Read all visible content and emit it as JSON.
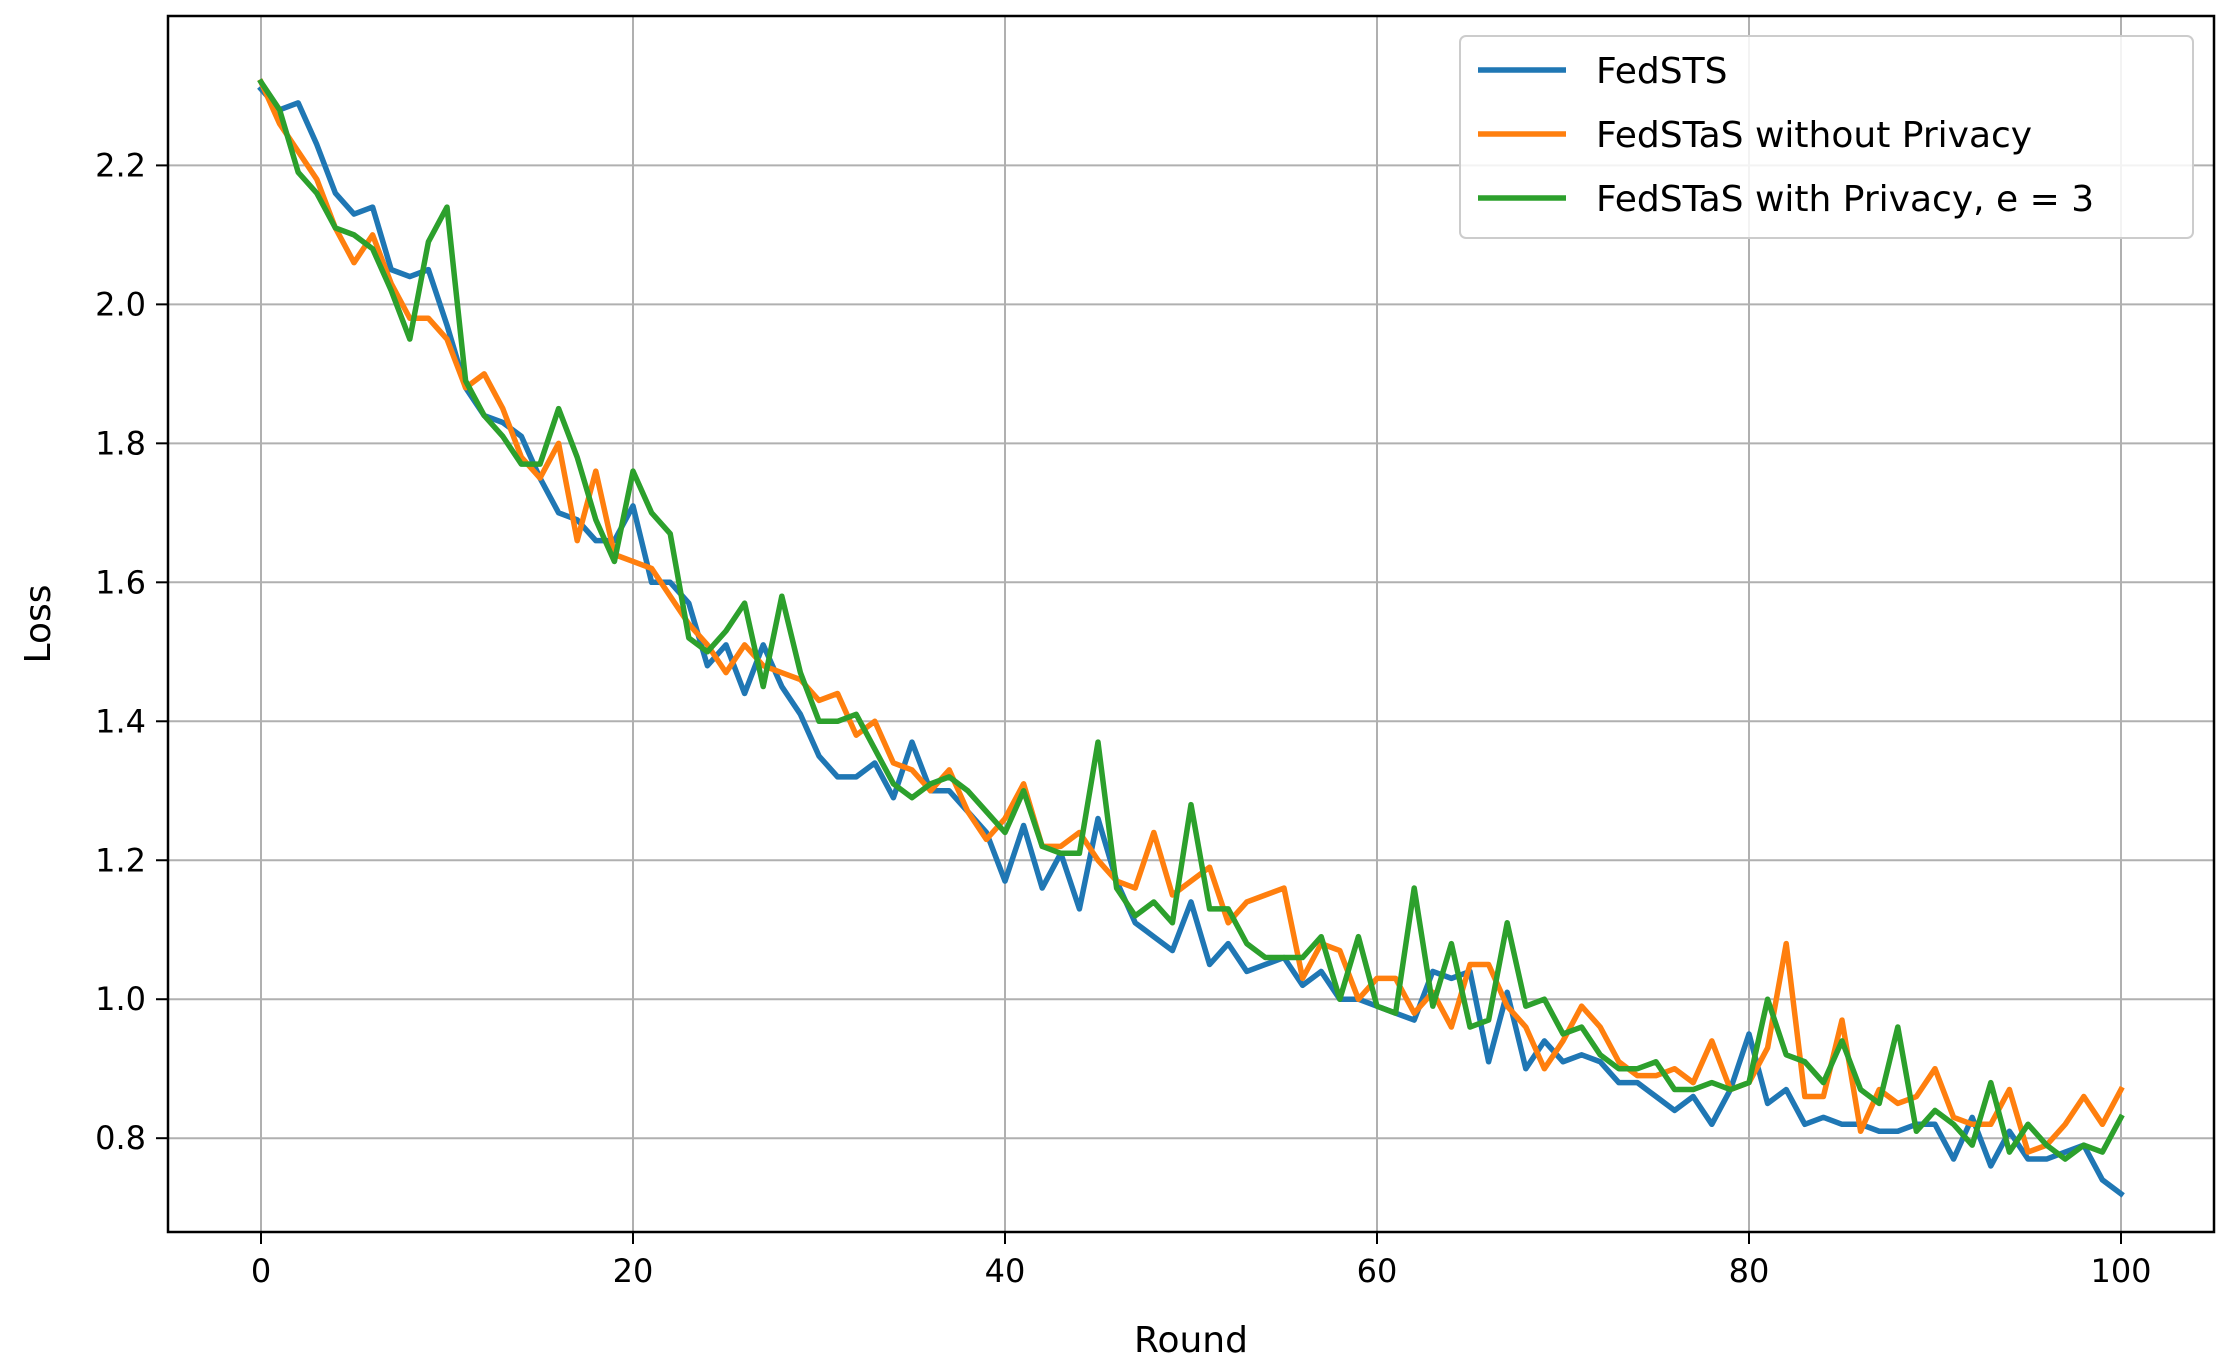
{
  "chart_data": {
    "type": "line",
    "xlabel": "Round",
    "ylabel": "Loss",
    "xlim": [
      -5,
      105
    ],
    "ylim": [
      0.665,
      2.415
    ],
    "xticks": [
      0,
      20,
      40,
      60,
      80,
      100
    ],
    "yticks": [
      0.8,
      1.0,
      1.2,
      1.4,
      1.6,
      1.8,
      2.0,
      2.2
    ],
    "xtick_labels": [
      "0",
      "20",
      "40",
      "60",
      "80",
      "100"
    ],
    "ytick_labels": [
      "0.8",
      "1.0",
      "1.2",
      "1.4",
      "1.6",
      "1.8",
      "2.0",
      "2.2"
    ],
    "grid": true,
    "legend_position": "top-right",
    "series": [
      {
        "name": "FedSTS",
        "color": "#1f77b4",
        "x_start": 0,
        "values": [
          2.31,
          2.28,
          2.29,
          2.23,
          2.16,
          2.13,
          2.14,
          2.05,
          2.04,
          2.05,
          1.97,
          1.88,
          1.84,
          1.83,
          1.81,
          1.75,
          1.7,
          1.69,
          1.66,
          1.66,
          1.71,
          1.6,
          1.6,
          1.57,
          1.48,
          1.51,
          1.44,
          1.51,
          1.45,
          1.41,
          1.35,
          1.32,
          1.32,
          1.34,
          1.29,
          1.37,
          1.3,
          1.3,
          1.27,
          1.24,
          1.17,
          1.25,
          1.16,
          1.21,
          1.13,
          1.26,
          1.17,
          1.11,
          1.09,
          1.07,
          1.14,
          1.05,
          1.08,
          1.04,
          1.05,
          1.06,
          1.02,
          1.04,
          1.0,
          1.0,
          0.99,
          0.98,
          0.97,
          1.04,
          1.03,
          1.04,
          0.91,
          1.01,
          0.9,
          0.94,
          0.91,
          0.92,
          0.91,
          0.88,
          0.88,
          0.86,
          0.84,
          0.86,
          0.82,
          0.87,
          0.95,
          0.85,
          0.87,
          0.82,
          0.83,
          0.82,
          0.82,
          0.81,
          0.81,
          0.82,
          0.82,
          0.77,
          0.83,
          0.76,
          0.81,
          0.77,
          0.77,
          0.78,
          0.79,
          0.74,
          0.72
        ]
      },
      {
        "name": "FedSTaS without Privacy",
        "color": "#ff7f0e",
        "x_start": 0,
        "values": [
          2.32,
          2.26,
          2.22,
          2.18,
          2.11,
          2.06,
          2.1,
          2.03,
          1.98,
          1.98,
          1.95,
          1.88,
          1.9,
          1.85,
          1.78,
          1.75,
          1.8,
          1.66,
          1.76,
          1.64,
          1.63,
          1.62,
          1.58,
          1.54,
          1.51,
          1.47,
          1.51,
          1.48,
          1.47,
          1.46,
          1.43,
          1.44,
          1.38,
          1.4,
          1.34,
          1.33,
          1.3,
          1.33,
          1.27,
          1.23,
          1.26,
          1.31,
          1.22,
          1.22,
          1.24,
          1.2,
          1.17,
          1.16,
          1.24,
          1.15,
          1.17,
          1.19,
          1.11,
          1.14,
          1.15,
          1.16,
          1.03,
          1.08,
          1.07,
          1.0,
          1.03,
          1.03,
          0.98,
          1.01,
          0.96,
          1.05,
          1.05,
          0.99,
          0.96,
          0.9,
          0.94,
          0.99,
          0.96,
          0.91,
          0.89,
          0.89,
          0.9,
          0.88,
          0.94,
          0.87,
          0.88,
          0.93,
          1.08,
          0.86,
          0.86,
          0.97,
          0.81,
          0.87,
          0.85,
          0.86,
          0.9,
          0.83,
          0.82,
          0.82,
          0.87,
          0.78,
          0.79,
          0.82,
          0.86,
          0.82,
          0.87
        ]
      },
      {
        "name": "FedSTaS with Privacy, e = 3",
        "color": "#2ca02c",
        "x_start": 0,
        "values": [
          2.32,
          2.28,
          2.19,
          2.16,
          2.11,
          2.1,
          2.08,
          2.02,
          1.95,
          2.09,
          2.14,
          1.89,
          1.84,
          1.81,
          1.77,
          1.77,
          1.85,
          1.78,
          1.69,
          1.63,
          1.76,
          1.7,
          1.67,
          1.52,
          1.5,
          1.53,
          1.57,
          1.45,
          1.58,
          1.47,
          1.4,
          1.4,
          1.41,
          1.36,
          1.31,
          1.29,
          1.31,
          1.32,
          1.3,
          1.27,
          1.24,
          1.3,
          1.22,
          1.21,
          1.21,
          1.37,
          1.16,
          1.12,
          1.14,
          1.11,
          1.28,
          1.13,
          1.13,
          1.08,
          1.06,
          1.06,
          1.06,
          1.09,
          1.0,
          1.09,
          0.99,
          0.98,
          1.16,
          0.99,
          1.08,
          0.96,
          0.97,
          1.11,
          0.99,
          1.0,
          0.95,
          0.96,
          0.92,
          0.9,
          0.9,
          0.91,
          0.87,
          0.87,
          0.88,
          0.87,
          0.88,
          1.0,
          0.92,
          0.91,
          0.88,
          0.94,
          0.87,
          0.85,
          0.96,
          0.81,
          0.84,
          0.82,
          0.79,
          0.88,
          0.78,
          0.82,
          0.79,
          0.77,
          0.79,
          0.78,
          0.83
        ]
      }
    ]
  }
}
